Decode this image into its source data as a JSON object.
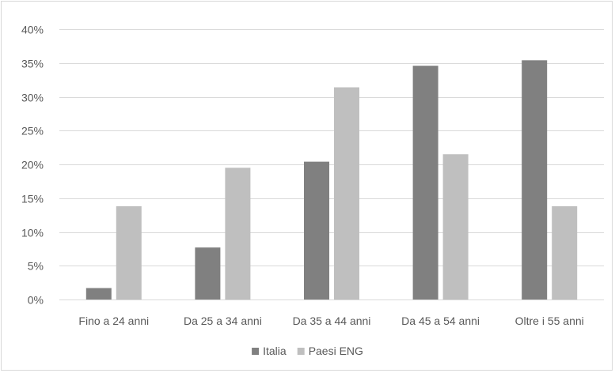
{
  "chart_data": {
    "type": "bar",
    "title": "",
    "xlabel": "",
    "ylabel": "",
    "categories": [
      "Fino a 24 anni",
      "Da 25 a 34 anni",
      "Da 35 a 44 anni",
      "Da 45 a 54 anni",
      "Oltre i 55 anni"
    ],
    "series": [
      {
        "name": "Italia",
        "values": [
          1.7,
          7.7,
          20.4,
          34.6,
          35.4
        ],
        "color": "#808080"
      },
      {
        "name": "Paesi ENG",
        "values": [
          13.8,
          19.5,
          31.4,
          21.5,
          13.8
        ],
        "color": "#bfbfbf"
      }
    ],
    "ylim": [
      0,
      40
    ],
    "yticks": [
      "0%",
      "5%",
      "10%",
      "15%",
      "20%",
      "25%",
      "30%",
      "35%",
      "40%"
    ],
    "ytick_values": [
      0,
      5,
      10,
      15,
      20,
      25,
      30,
      35,
      40
    ],
    "grid": true,
    "gridline_color": "#d9d9d9",
    "legend_position": "bottom"
  }
}
